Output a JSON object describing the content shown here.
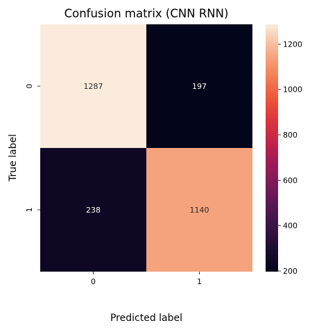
{
  "chart_data": {
    "type": "heatmap",
    "title": "Confusion matrix (CNN RNN)",
    "xlabel": "Predicted label",
    "ylabel": "True label",
    "x_categories": [
      "0",
      "1"
    ],
    "y_categories": [
      "0",
      "1"
    ],
    "values": [
      [
        1287,
        197
      ],
      [
        238,
        1140
      ]
    ],
    "colorbar": {
      "min": 197,
      "max": 1287,
      "ticks": [
        200,
        400,
        600,
        800,
        1000,
        1200
      ]
    },
    "colormap": "rocket"
  }
}
